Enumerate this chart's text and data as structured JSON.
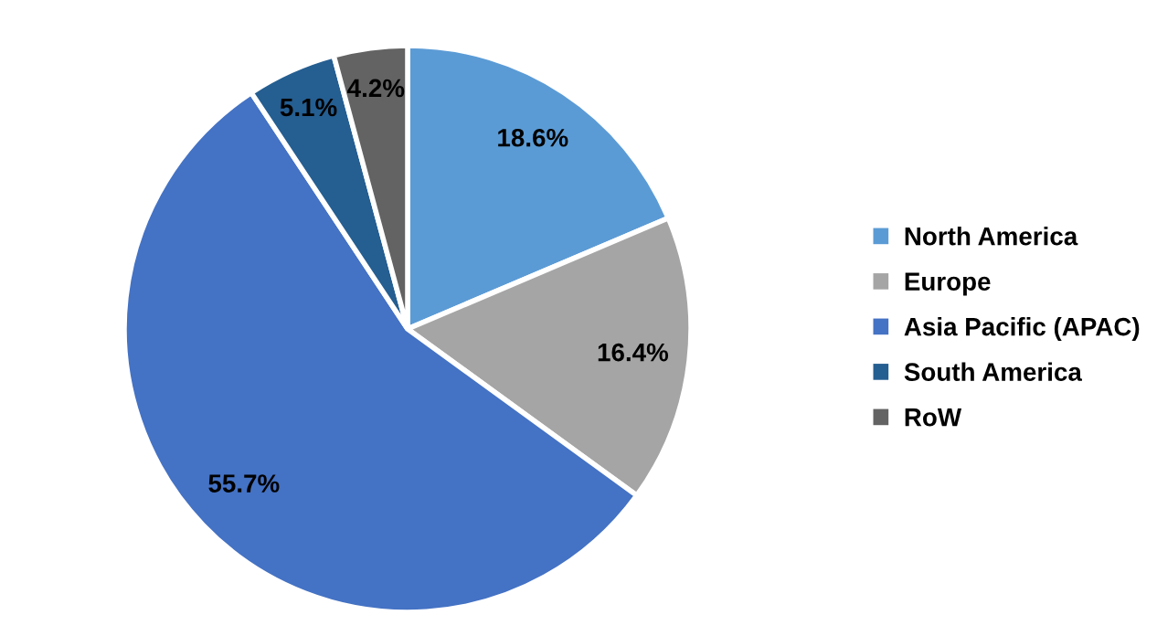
{
  "chart_data": {
    "type": "pie",
    "categories": [
      "North America",
      "Europe",
      "Asia Pacific (APAC)",
      "South America",
      "RoW"
    ],
    "values": [
      18.6,
      16.4,
      55.7,
      5.1,
      4.2
    ],
    "colors": [
      "#5b9bd5",
      "#a5a5a5",
      "#4472c4",
      "#255e91",
      "#636363"
    ],
    "value_labels": [
      "18.6%",
      "16.4%",
      "55.7%",
      "5.1%",
      "4.2%"
    ],
    "legend": "right"
  }
}
